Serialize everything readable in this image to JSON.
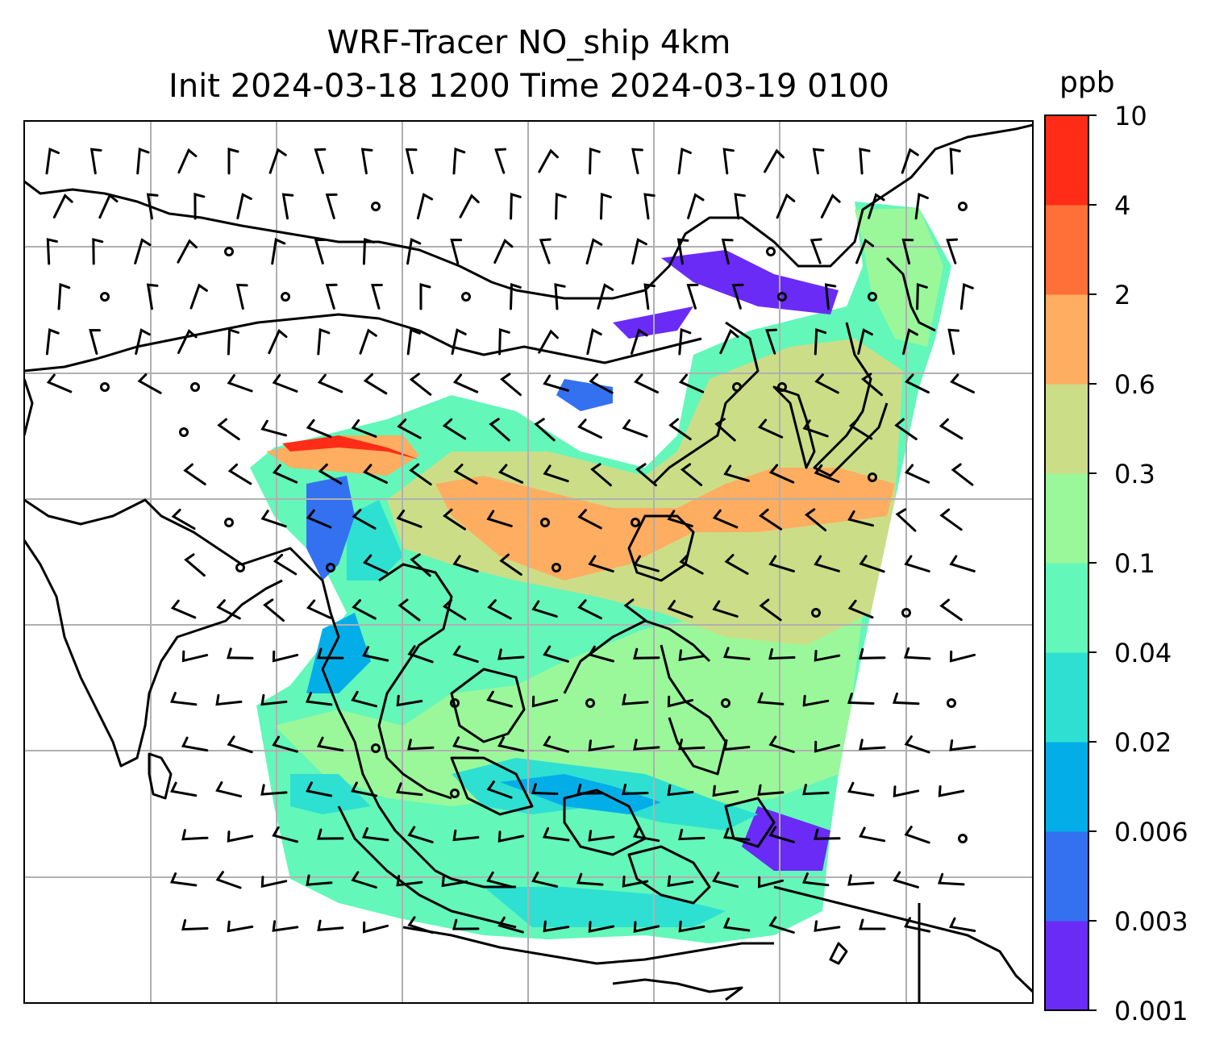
{
  "title_line1": "WRF-Tracer NO_ship 4km",
  "title_line2": "Init 2024-03-18 1200 Time 2024-03-19 0100",
  "colorbar": {
    "unit": "ppb",
    "levels": [
      "0.001",
      "0.003",
      "0.006",
      "0.02",
      "0.04",
      "0.1",
      "0.3",
      "0.6",
      "2",
      "4",
      "10"
    ],
    "colors": [
      "#6a2bf7",
      "#3471f0",
      "#03aee8",
      "#2ee0d2",
      "#63f7ba",
      "#9af89a",
      "#ccdd88",
      "#ffad60",
      "#ff7038",
      "#ff2d17"
    ]
  },
  "map": {
    "type": "filled-contour-with-wind-barbs",
    "frame_color": "#000000",
    "grid_color": "#b0b0b0",
    "coastline_color": "#000000"
  }
}
